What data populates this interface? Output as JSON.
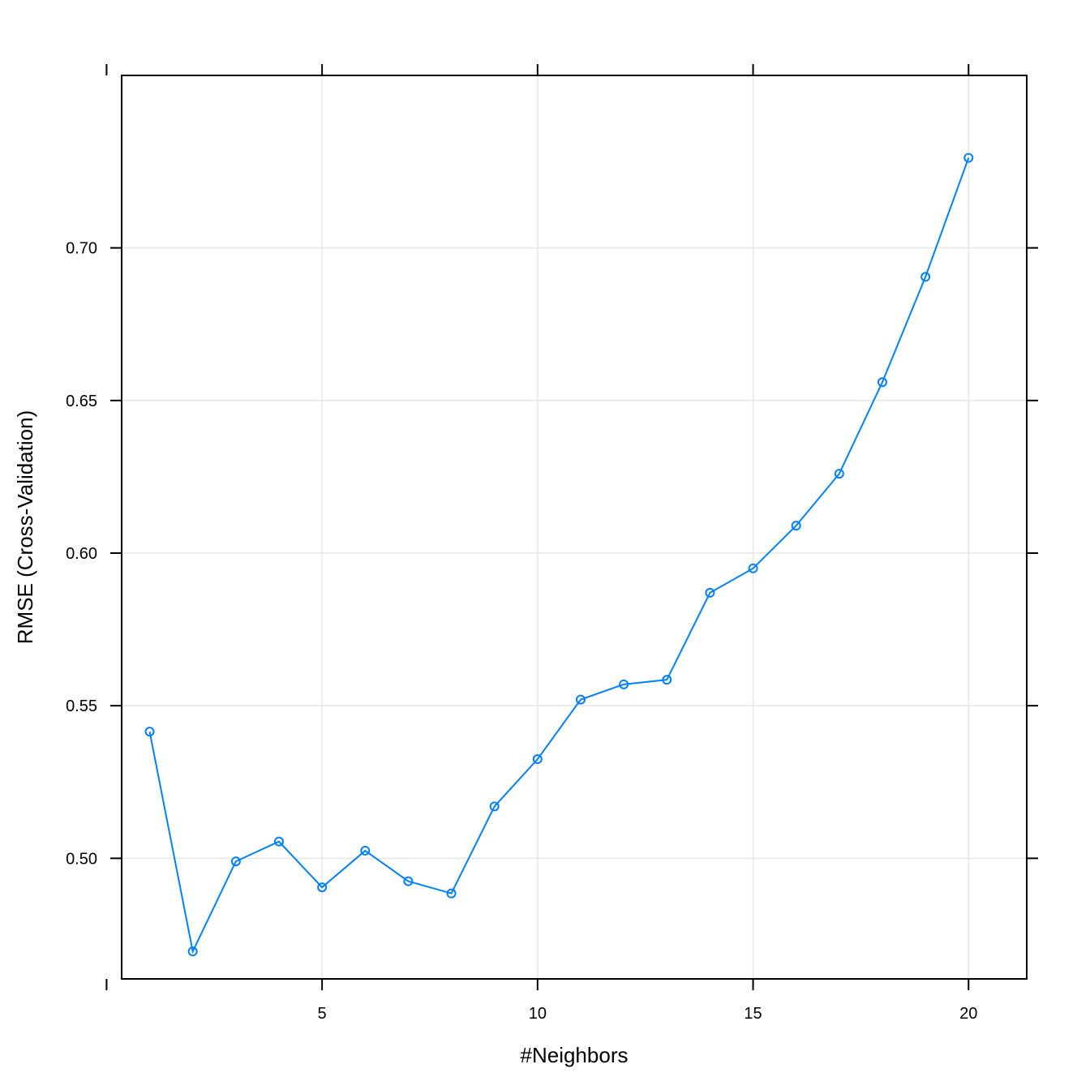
{
  "chart_data": {
    "type": "line",
    "title": "",
    "xlabel": "#Neighbors",
    "ylabel": "RMSE (Cross-Validation)",
    "xlim": [
      0.35,
      21.35
    ],
    "ylim": [
      0.4605,
      0.7565
    ],
    "xticks": [
      5,
      10,
      15,
      20
    ],
    "yticks": [
      0.5,
      0.55,
      0.6,
      0.65,
      0.7
    ],
    "x_tick_labels": [
      "5",
      "10",
      "15",
      "20"
    ],
    "y_tick_labels": [
      "0.50",
      "0.55",
      "0.60",
      "0.65",
      "0.70"
    ],
    "grid": true,
    "legend": "none",
    "series": [
      {
        "x": [
          1,
          2,
          3,
          4,
          5,
          6,
          7,
          8,
          9,
          10,
          11,
          12,
          13,
          14,
          15,
          16,
          17,
          18,
          19,
          20
        ],
        "y": [
          0.5415,
          0.4695,
          0.499,
          0.5055,
          0.4905,
          0.5025,
          0.4925,
          0.4885,
          0.517,
          0.5325,
          0.552,
          0.557,
          0.5585,
          0.587,
          0.595,
          0.609,
          0.626,
          0.656,
          0.6905,
          0.7295
        ],
        "color": "#0080ff"
      }
    ],
    "colors": {
      "grid": "#e6e6e6",
      "axis": "#000000",
      "series": "#0080ff"
    }
  }
}
